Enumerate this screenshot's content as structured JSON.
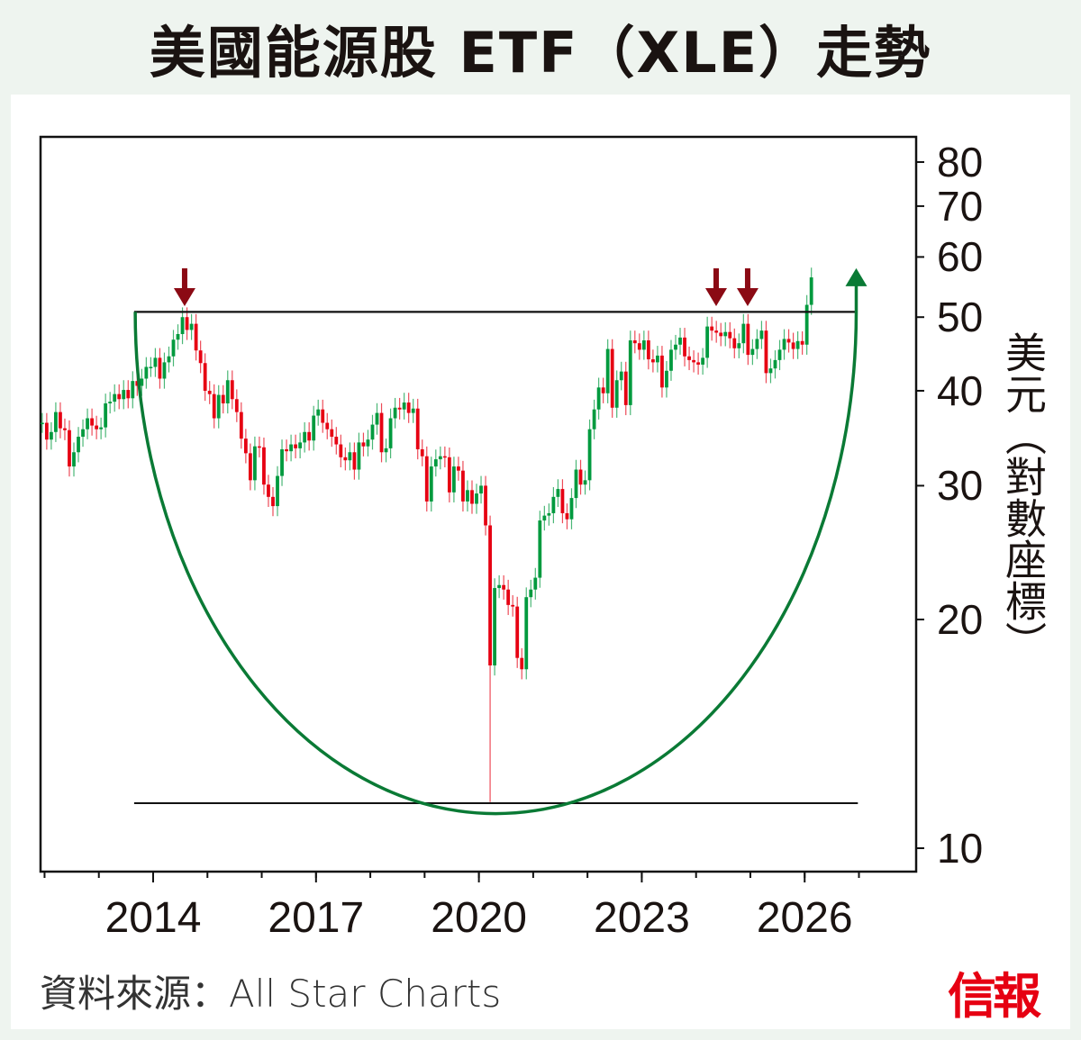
{
  "title": "美國能源股 ETF（XLE）走勢",
  "source": "資料來源：All Star Charts",
  "logo": "信報",
  "colors": {
    "up": "#009a3e",
    "down": "#e60012",
    "arrow": "#8b0a14",
    "curve": "#0a7a35",
    "line": "#111111"
  },
  "chart_data": {
    "type": "candlestick",
    "title": "美國能源股 ETF（XLE）走勢",
    "ylabel": "美元（對數座標）",
    "yscale": "log",
    "ylim": [
      9.5,
      85
    ],
    "yticks": [
      10,
      20,
      30,
      40,
      50,
      60,
      70,
      80
    ],
    "xticks": [
      "2014",
      "2017",
      "2020",
      "2023",
      "2026"
    ],
    "xminor_years": [
      2012,
      2013,
      2014,
      2015,
      2016,
      2017,
      2018,
      2019,
      2020,
      2021,
      2022,
      2023,
      2024,
      2025,
      2026,
      2027
    ],
    "xlim": [
      2011.95,
      2028.1
    ],
    "interval": "monthly",
    "start": "2011-12",
    "wick_pct": 0.03,
    "special_lows": {
      "99": 11.5
    },
    "closes": [
      36.3,
      34.5,
      35.3,
      37.5,
      35.7,
      35.5,
      31.8,
      33.2,
      34.8,
      35.6,
      36.8,
      36.0,
      35.6,
      35.8,
      38.5,
      38.7,
      39.6,
      39.0,
      40.1,
      39.1,
      41.2,
      40.6,
      41.5,
      43.0,
      43.0,
      44.2,
      41.5,
      43.6,
      44.4,
      46.7,
      47.5,
      50.0,
      48.1,
      49.0,
      45.2,
      43.5,
      40.0,
      39.6,
      36.8,
      39.5,
      38.5,
      41.3,
      39.0,
      37.5,
      34.6,
      33.1,
      30.5,
      33.8,
      33.7,
      30.1,
      29.0,
      28.2,
      30.9,
      33.5,
      33.3,
      34.0,
      33.6,
      34.2,
      35.3,
      34.4,
      37.1,
      37.8,
      36.3,
      35.6,
      34.8,
      34.0,
      32.7,
      32.4,
      33.2,
      31.5,
      34.2,
      33.8,
      34.5,
      36.1,
      37.4,
      33.2,
      33.6,
      36.8,
      38.0,
      37.8,
      38.6,
      37.4,
      37.9,
      33.5,
      32.8,
      28.6,
      31.8,
      32.5,
      32.8,
      32.7,
      29.4,
      31.8,
      31.4,
      28.6,
      29.6,
      28.4,
      29.3,
      30.0,
      26.6,
      17.4,
      22.0,
      22.2,
      21.9,
      20.9,
      20.8,
      17.8,
      17.2,
      21.4,
      21.9,
      22.7,
      27.0,
      27.4,
      27.6,
      29.0,
      29.7,
      27.6,
      27.1,
      28.9,
      31.5,
      30.1,
      30.5,
      35.6,
      37.8,
      40.4,
      39.7,
      45.4,
      38.0,
      41.3,
      42.4,
      38.3,
      46.6,
      46.2,
      45.3,
      46.6,
      44.0,
      43.6,
      44.5,
      40.4,
      42.5,
      45.3,
      46.0,
      47.0,
      44.4,
      43.9,
      43.6,
      43.3,
      44.2,
      48.6,
      48.0,
      47.7,
      47.2,
      47.8,
      46.9,
      45.5,
      46.2,
      49.0,
      44.6,
      45.4,
      46.8,
      48.0,
      42.2,
      42.8,
      43.9,
      45.3,
      46.8,
      46.3,
      45.4,
      46.5,
      46.0,
      51.9,
      56.4
    ],
    "annotations": {
      "resistance": {
        "value": 50.8,
        "from": 2013.65,
        "to": 2026.95
      },
      "support": {
        "value": 11.46,
        "from": 2013.65,
        "to": 2026.98
      },
      "cup_curve": {
        "start": [
          2013.67,
          50.8
        ],
        "bottom": [
          2020.35,
          11.1
        ],
        "end": [
          2026.95,
          50.8
        ],
        "arrow_tip": 58
      },
      "down_arrows": [
        2014.58,
        2024.37,
        2024.95
      ],
      "down_arrow_tip": 51.7
    }
  }
}
